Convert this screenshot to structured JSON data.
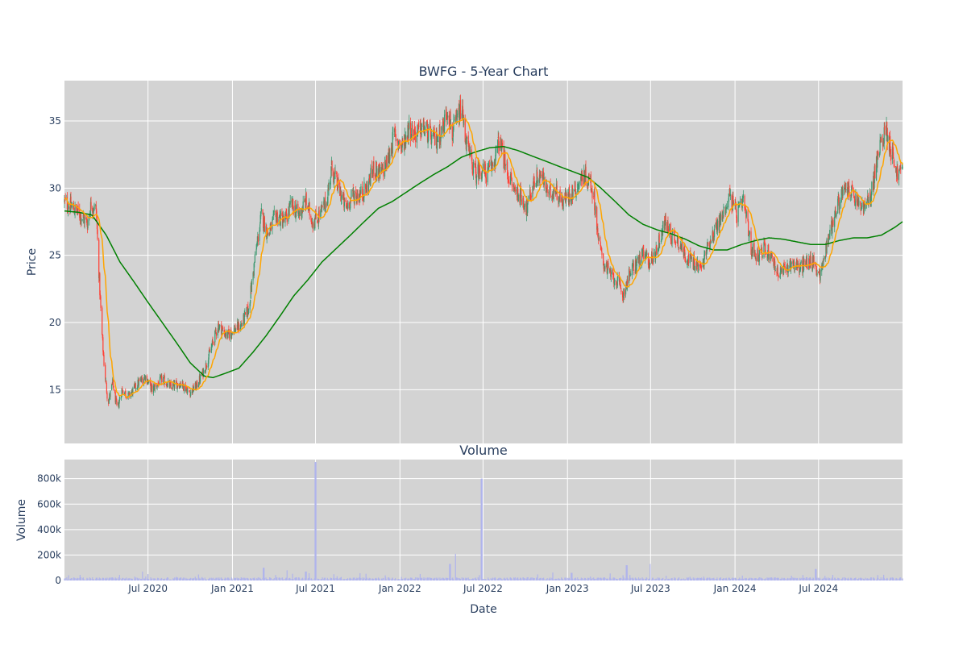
{
  "colors": {
    "plot_bg": "#d3d3d3",
    "grid": "#ffffff",
    "up": "#3d9970",
    "down": "#ff4136",
    "ma_short": "#ffa500",
    "ma_long": "#008000",
    "volume": "#b0b4ec",
    "text": "#2a3f5f"
  },
  "chart_data": [
    {
      "type": "candlestick",
      "title": "BWFG - 5-Year Chart",
      "ylabel": "Price",
      "x_range": [
        "2020-01-01",
        "2024-12-31"
      ],
      "ylim": [
        11,
        38
      ],
      "y_ticks": [
        15,
        20,
        25,
        30,
        35
      ],
      "grid": true,
      "close_keypoints": [
        [
          "2020-01-01",
          29.0
        ],
        [
          "2020-01-20",
          28.5
        ],
        [
          "2020-02-05",
          28.0
        ],
        [
          "2020-02-20",
          27.4
        ],
        [
          "2020-02-28",
          28.8
        ],
        [
          "2020-03-10",
          28.4
        ],
        [
          "2020-03-15",
          24.5
        ],
        [
          "2020-03-22",
          19.5
        ],
        [
          "2020-03-28",
          16.5
        ],
        [
          "2020-04-05",
          14.0
        ],
        [
          "2020-04-15",
          15.5
        ],
        [
          "2020-04-25",
          13.5
        ],
        [
          "2020-05-05",
          15.0
        ],
        [
          "2020-05-20",
          14.5
        ],
        [
          "2020-06-10",
          15.5
        ],
        [
          "2020-06-25",
          16.0
        ],
        [
          "2020-07-10",
          15.0
        ],
        [
          "2020-08-01",
          15.8
        ],
        [
          "2020-08-20",
          15.2
        ],
        [
          "2020-09-10",
          15.5
        ],
        [
          "2020-09-30",
          14.8
        ],
        [
          "2020-10-15",
          15.3
        ],
        [
          "2020-11-01",
          16.5
        ],
        [
          "2020-11-15",
          18.0
        ],
        [
          "2020-12-01",
          19.8
        ],
        [
          "2020-12-20",
          19.0
        ],
        [
          "2021-01-05",
          19.5
        ],
        [
          "2021-01-20",
          19.8
        ],
        [
          "2021-02-05",
          21.0
        ],
        [
          "2021-02-20",
          25.0
        ],
        [
          "2021-03-05",
          28.0
        ],
        [
          "2021-03-20",
          26.5
        ],
        [
          "2021-04-05",
          28.0
        ],
        [
          "2021-04-25",
          27.5
        ],
        [
          "2021-05-10",
          28.8
        ],
        [
          "2021-05-25",
          28.0
        ],
        [
          "2021-06-10",
          29.0
        ],
        [
          "2021-06-25",
          27.5
        ],
        [
          "2021-07-10",
          28.0
        ],
        [
          "2021-07-25",
          29.0
        ],
        [
          "2021-08-05",
          31.5
        ],
        [
          "2021-08-20",
          30.0
        ],
        [
          "2021-09-05",
          28.5
        ],
        [
          "2021-09-20",
          29.5
        ],
        [
          "2021-10-05",
          29.5
        ],
        [
          "2021-10-20",
          30.0
        ],
        [
          "2021-11-05",
          31.5
        ],
        [
          "2021-11-20",
          31.0
        ],
        [
          "2021-12-05",
          32.0
        ],
        [
          "2021-12-20",
          34.0
        ],
        [
          "2022-01-05",
          33.0
        ],
        [
          "2022-01-20",
          34.5
        ],
        [
          "2022-02-05",
          34.0
        ],
        [
          "2022-02-20",
          34.5
        ],
        [
          "2022-03-05",
          34.0
        ],
        [
          "2022-03-20",
          33.5
        ],
        [
          "2022-04-05",
          34.5
        ],
        [
          "2022-04-15",
          36.0
        ],
        [
          "2022-04-25",
          34.0
        ],
        [
          "2022-05-05",
          35.0
        ],
        [
          "2022-05-15",
          36.0
        ],
        [
          "2022-05-25",
          33.5
        ],
        [
          "2022-06-05",
          32.0
        ],
        [
          "2022-06-15",
          31.0
        ],
        [
          "2022-06-25",
          31.5
        ],
        [
          "2022-07-10",
          31.0
        ],
        [
          "2022-07-25",
          32.0
        ],
        [
          "2022-08-05",
          33.5
        ],
        [
          "2022-08-20",
          31.5
        ],
        [
          "2022-09-05",
          30.0
        ],
        [
          "2022-09-20",
          29.5
        ],
        [
          "2022-10-05",
          28.5
        ],
        [
          "2022-10-20",
          30.5
        ],
        [
          "2022-11-05",
          31.0
        ],
        [
          "2022-11-20",
          29.5
        ],
        [
          "2022-12-05",
          30.0
        ],
        [
          "2022-12-20",
          29.0
        ],
        [
          "2023-01-05",
          29.5
        ],
        [
          "2023-01-20",
          30.0
        ],
        [
          "2023-02-05",
          31.0
        ],
        [
          "2023-02-20",
          30.5
        ],
        [
          "2023-03-01",
          29.0
        ],
        [
          "2023-03-10",
          26.0
        ],
        [
          "2023-03-20",
          24.5
        ],
        [
          "2023-04-05",
          23.5
        ],
        [
          "2023-04-20",
          23.0
        ],
        [
          "2023-05-01",
          22.0
        ],
        [
          "2023-05-15",
          23.5
        ],
        [
          "2023-06-01",
          24.5
        ],
        [
          "2023-06-15",
          25.0
        ],
        [
          "2023-07-01",
          24.5
        ],
        [
          "2023-07-15",
          25.5
        ],
        [
          "2023-08-01",
          27.5
        ],
        [
          "2023-08-15",
          26.5
        ],
        [
          "2023-09-01",
          26.0
        ],
        [
          "2023-09-15",
          25.0
        ],
        [
          "2023-10-01",
          24.5
        ],
        [
          "2023-10-20",
          24.0
        ],
        [
          "2023-11-05",
          26.0
        ],
        [
          "2023-11-20",
          27.0
        ],
        [
          "2023-12-05",
          28.0
        ],
        [
          "2023-12-20",
          29.5
        ],
        [
          "2024-01-05",
          28.0
        ],
        [
          "2024-01-20",
          29.0
        ],
        [
          "2024-02-05",
          25.5
        ],
        [
          "2024-02-20",
          25.0
        ],
        [
          "2024-03-05",
          25.5
        ],
        [
          "2024-03-20",
          25.0
        ],
        [
          "2024-04-05",
          23.5
        ],
        [
          "2024-04-20",
          24.0
        ],
        [
          "2024-05-05",
          24.5
        ],
        [
          "2024-05-20",
          24.0
        ],
        [
          "2024-06-05",
          24.5
        ],
        [
          "2024-06-20",
          24.5
        ],
        [
          "2024-07-05",
          23.5
        ],
        [
          "2024-07-20",
          26.0
        ],
        [
          "2024-08-05",
          28.0
        ],
        [
          "2024-08-20",
          29.5
        ],
        [
          "2024-09-05",
          30.0
        ],
        [
          "2024-09-20",
          29.0
        ],
        [
          "2024-10-05",
          28.5
        ],
        [
          "2024-10-20",
          29.0
        ],
        [
          "2024-11-05",
          32.0
        ],
        [
          "2024-11-15",
          33.5
        ],
        [
          "2024-11-25",
          34.5
        ],
        [
          "2024-12-05",
          33.0
        ],
        [
          "2024-12-20",
          31.0
        ],
        [
          "2024-12-31",
          31.5
        ]
      ],
      "ma_long_keypoints": [
        [
          "2020-01-01",
          28.3
        ],
        [
          "2020-02-01",
          28.2
        ],
        [
          "2020-03-01",
          28.0
        ],
        [
          "2020-04-01",
          26.5
        ],
        [
          "2020-05-01",
          24.5
        ],
        [
          "2020-06-01",
          23.0
        ],
        [
          "2020-07-01",
          21.5
        ],
        [
          "2020-08-01",
          20.0
        ],
        [
          "2020-09-01",
          18.5
        ],
        [
          "2020-10-01",
          17.0
        ],
        [
          "2020-11-01",
          16.0
        ],
        [
          "2020-11-20",
          15.9
        ],
        [
          "2020-12-15",
          16.2
        ],
        [
          "2021-01-15",
          16.6
        ],
        [
          "2021-02-15",
          17.8
        ],
        [
          "2021-03-15",
          19.0
        ],
        [
          "2021-04-15",
          20.5
        ],
        [
          "2021-05-15",
          22.0
        ],
        [
          "2021-06-15",
          23.2
        ],
        [
          "2021-07-15",
          24.5
        ],
        [
          "2021-08-15",
          25.5
        ],
        [
          "2021-09-15",
          26.5
        ],
        [
          "2021-10-15",
          27.5
        ],
        [
          "2021-11-15",
          28.5
        ],
        [
          "2021-12-15",
          29.0
        ],
        [
          "2022-01-15",
          29.7
        ],
        [
          "2022-02-15",
          30.4
        ],
        [
          "2022-03-15",
          31.0
        ],
        [
          "2022-04-15",
          31.6
        ],
        [
          "2022-05-15",
          32.3
        ],
        [
          "2022-06-15",
          32.7
        ],
        [
          "2022-07-15",
          33.0
        ],
        [
          "2022-08-15",
          33.1
        ],
        [
          "2022-09-15",
          32.8
        ],
        [
          "2022-10-15",
          32.4
        ],
        [
          "2022-11-15",
          32.0
        ],
        [
          "2022-12-15",
          31.6
        ],
        [
          "2023-01-15",
          31.2
        ],
        [
          "2023-02-15",
          30.8
        ],
        [
          "2023-03-15",
          30.0
        ],
        [
          "2023-04-15",
          29.0
        ],
        [
          "2023-05-15",
          28.0
        ],
        [
          "2023-06-15",
          27.3
        ],
        [
          "2023-07-15",
          26.9
        ],
        [
          "2023-08-15",
          26.6
        ],
        [
          "2023-09-15",
          26.2
        ],
        [
          "2023-10-15",
          25.7
        ],
        [
          "2023-11-15",
          25.4
        ],
        [
          "2023-12-15",
          25.4
        ],
        [
          "2024-01-15",
          25.8
        ],
        [
          "2024-02-15",
          26.1
        ],
        [
          "2024-03-15",
          26.3
        ],
        [
          "2024-04-15",
          26.2
        ],
        [
          "2024-05-15",
          26.0
        ],
        [
          "2024-06-15",
          25.8
        ],
        [
          "2024-07-15",
          25.8
        ],
        [
          "2024-08-15",
          26.1
        ],
        [
          "2024-09-15",
          26.3
        ],
        [
          "2024-10-15",
          26.3
        ],
        [
          "2024-11-15",
          26.5
        ],
        [
          "2024-12-15",
          27.1
        ],
        [
          "2024-12-31",
          27.5
        ]
      ],
      "x_ticks": [
        "Jul 2020",
        "Jan 2021",
        "Jul 2021",
        "Jan 2022",
        "Jul 2022",
        "Jan 2023",
        "Jul 2023",
        "Jan 2024",
        "Jul 2024"
      ],
      "x_tick_dates": [
        "2020-07-01",
        "2021-01-01",
        "2021-07-01",
        "2022-01-01",
        "2022-07-01",
        "2023-01-01",
        "2023-07-01",
        "2024-01-01",
        "2024-07-01"
      ]
    },
    {
      "type": "bar",
      "title": "Volume",
      "ylabel": "Volume",
      "xlabel": "Date",
      "ylim": [
        0,
        950000
      ],
      "y_ticks": [
        0,
        200000,
        400000,
        600000,
        800000
      ],
      "y_tick_labels": [
        "0",
        "200k",
        "400k",
        "600k",
        "800k"
      ],
      "spikes": [
        [
          "2021-07-01",
          930000
        ],
        [
          "2022-06-28",
          800000
        ],
        [
          "2022-05-01",
          210000
        ],
        [
          "2022-04-20",
          130000
        ],
        [
          "2021-03-10",
          100000
        ],
        [
          "2023-05-10",
          120000
        ],
        [
          "2023-07-01",
          130000
        ],
        [
          "2021-05-01",
          80000
        ],
        [
          "2020-06-20",
          70000
        ],
        [
          "2024-06-25",
          90000
        ],
        [
          "2021-06-10",
          70000
        ],
        [
          "2023-01-10",
          60000
        ]
      ]
    }
  ]
}
